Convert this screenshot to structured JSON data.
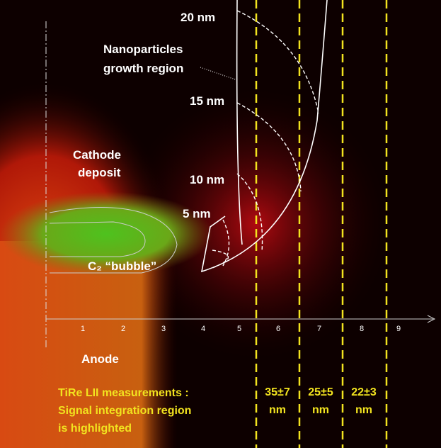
{
  "labels": {
    "size_20": "20 nm",
    "size_15": "15 nm",
    "size_10": "10 nm",
    "size_5": "5 nm",
    "growth_region": [
      "Nanoparticles",
      "growth region"
    ],
    "cathode": [
      "Cathode",
      "deposit"
    ],
    "bubble": "C₂ “bubble”",
    "anode": "Anode",
    "axis_ticks": [
      "1",
      "2",
      "3",
      "4",
      "5",
      "6",
      "7",
      "8",
      "9"
    ],
    "measurements": [
      "TiRe LII measurements :",
      "Signal integration region",
      "is highlighted"
    ],
    "regions": [
      [
        "35±7",
        "nm"
      ],
      [
        "25±5",
        "nm"
      ],
      [
        "22±3",
        "nm"
      ]
    ]
  }
}
